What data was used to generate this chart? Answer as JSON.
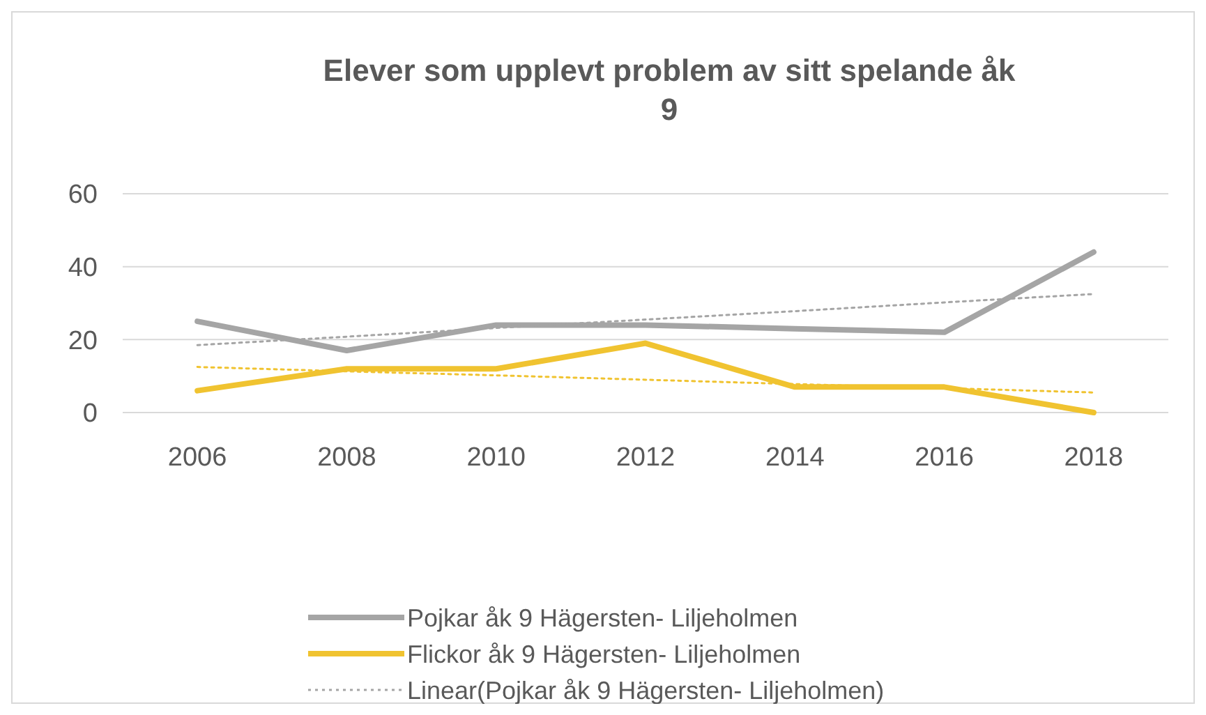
{
  "chart_data": {
    "type": "line",
    "title": "Elever som upplevt problem av sitt spelande åk 9",
    "categories": [
      "2006",
      "2008",
      "2010",
      "2012",
      "2014",
      "2016",
      "2018"
    ],
    "series": [
      {
        "name": "Pojkar åk 9 Hägersten- Liljeholmen",
        "color": "#a5a5a5",
        "values": [
          25,
          17,
          24,
          24,
          23,
          22,
          44
        ]
      },
      {
        "name": "Flickor åk 9 Hägersten- Liljeholmen",
        "color": "#f0c330",
        "values": [
          6,
          12,
          12,
          19,
          7,
          7,
          0
        ]
      },
      {
        "name": "Linear(Pojkar åk 9 Hägersten- Liljeholmen)",
        "color": "#a5a5a5",
        "values": [
          18.5,
          20.8,
          23.2,
          25.5,
          27.8,
          30.2,
          32.5
        ],
        "line_style": "dotted"
      },
      {
        "color": "#f0c330",
        "values": [
          12.5,
          11.3,
          10.2,
          9,
          7.8,
          6.7,
          5.5
        ],
        "line_style": "dotted"
      }
    ],
    "ylim": [
      0,
      60
    ],
    "yticks": [
      0,
      20,
      40,
      60
    ],
    "grid": "y",
    "legend": "bottom"
  }
}
